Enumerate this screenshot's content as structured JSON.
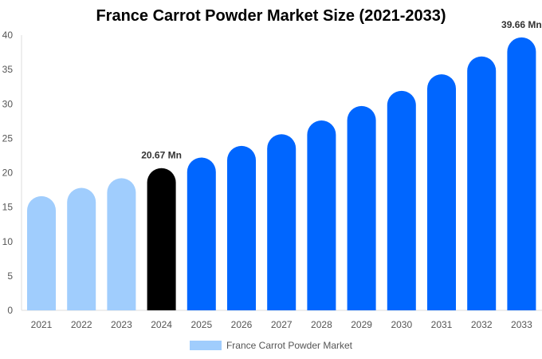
{
  "chart_data": {
    "type": "bar",
    "title": "France Carrot Powder Market Size (2021-2033)",
    "categories": [
      "2021",
      "2022",
      "2023",
      "2024",
      "2025",
      "2026",
      "2027",
      "2028",
      "2029",
      "2030",
      "2031",
      "2032",
      "2033"
    ],
    "series": [
      {
        "name": "France Carrot Powder Market",
        "values": [
          16.6,
          17.8,
          19.2,
          20.67,
          22.2,
          23.9,
          25.6,
          27.6,
          29.7,
          31.9,
          34.3,
          36.9,
          39.66
        ]
      }
    ],
    "data_labels": {
      "2024": "20.67 Mn",
      "2033": "39.66 Mn"
    },
    "ylim": [
      0,
      40
    ],
    "yticks": [
      0,
      5,
      10,
      15,
      20,
      25,
      30,
      35,
      40
    ],
    "xlabel": "",
    "ylabel": "",
    "grid": false,
    "legend": "bottom",
    "colors": {
      "historic": "#a0cdfd",
      "current": "#000000",
      "forecast": "#0066ff",
      "legend": "#a0cdfd"
    }
  }
}
